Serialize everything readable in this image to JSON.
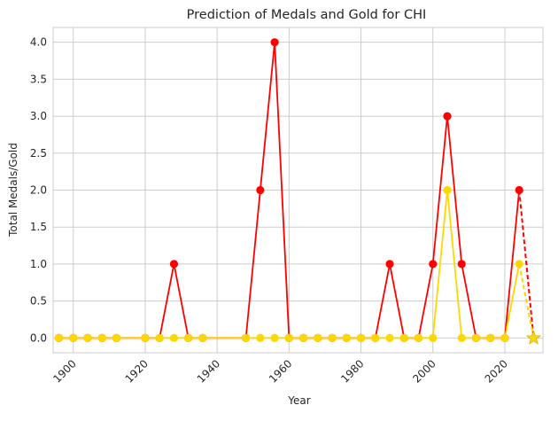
{
  "chart_data": {
    "type": "line",
    "title": "Prediction of Medals and Gold for CHI",
    "xlabel": "Year",
    "ylabel": "Total Medals/Gold",
    "xlim": [
      1894.4,
      2030.6
    ],
    "ylim": [
      -0.2,
      4.2
    ],
    "xticks": [
      1900,
      1920,
      1940,
      1960,
      1980,
      2000,
      2020
    ],
    "yticks": [
      "0.0",
      "0.5",
      "1.0",
      "1.5",
      "2.0",
      "2.5",
      "3.0",
      "3.5",
      "4.0"
    ],
    "grid": true,
    "legend": "none",
    "series": [
      {
        "color": "#ff0000",
        "x": [
          1896,
          1900,
          1904,
          1908,
          1912,
          1920,
          1924,
          1928,
          1932,
          1936,
          1948,
          1952,
          1956,
          1960,
          1964,
          1968,
          1972,
          1976,
          1980,
          1984,
          1988,
          1992,
          1996,
          2000,
          2004,
          2008,
          2012,
          2016,
          2020,
          2024
        ],
        "y": [
          0,
          0,
          0,
          0,
          0,
          0,
          0,
          1,
          0,
          0,
          0,
          2,
          4,
          0,
          0,
          0,
          0,
          0,
          0,
          0,
          1,
          0,
          0,
          1,
          3,
          1,
          0,
          0,
          0,
          2
        ]
      },
      {
        "color": "#ffd700",
        "x": [
          1896,
          1900,
          1904,
          1908,
          1912,
          1920,
          1924,
          1928,
          1932,
          1936,
          1948,
          1952,
          1956,
          1960,
          1964,
          1968,
          1972,
          1976,
          1980,
          1984,
          1988,
          1992,
          1996,
          2000,
          2004,
          2008,
          2012,
          2016,
          2020,
          2024
        ],
        "y": [
          0,
          0,
          0,
          0,
          0,
          0,
          0,
          0,
          0,
          0,
          0,
          0,
          0,
          0,
          0,
          0,
          0,
          0,
          0,
          0,
          0,
          0,
          0,
          0,
          2,
          0,
          0,
          0,
          0,
          1
        ]
      }
    ],
    "predictions": [
      {
        "color": "#ff0000",
        "from": [
          2024,
          2
        ],
        "to": [
          2028,
          0
        ]
      },
      {
        "color": "#ffd700",
        "from": [
          2024,
          1
        ],
        "to": [
          2028,
          0
        ]
      }
    ]
  }
}
